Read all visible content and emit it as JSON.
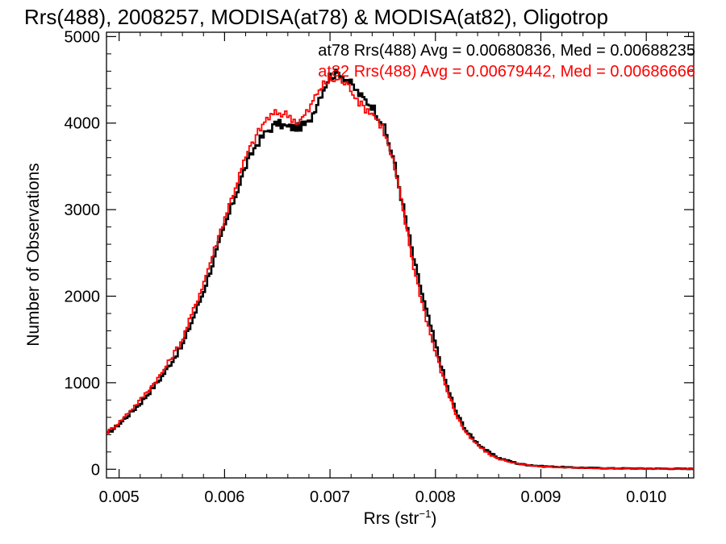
{
  "chart_data": {
    "type": "line",
    "title": "Rrs(488), 2008257, MODISA(at78) & MODISA(at82), Oligotrop",
    "xlabel": "Rrs (str",
    "xlabel_sup": "−1",
    "xlabel_tail": ")",
    "ylabel": "Number of Observations",
    "xlim": [
      0.00488,
      0.01045
    ],
    "ylim": [
      -100,
      5050
    ],
    "x_ticks": [
      0.005,
      0.006,
      0.007,
      0.008,
      0.009,
      0.01
    ],
    "x_tick_labels": [
      "0.005",
      "0.006",
      "0.007",
      "0.008",
      "0.009",
      "0.010"
    ],
    "y_ticks": [
      0,
      1000,
      2000,
      3000,
      4000,
      5000
    ],
    "y_tick_labels": [
      "0",
      "1000",
      "2000",
      "3000",
      "4000",
      "5000"
    ],
    "grid": false,
    "series": [
      {
        "name": "at78",
        "stat_text": "at78 Rrs(488) Avg = 0.00680836, Med = 0.00688235",
        "color": "#000000",
        "x": [
          0.00488,
          0.005,
          0.0052,
          0.0054,
          0.0056,
          0.0058,
          0.006,
          0.0062,
          0.0063,
          0.0064,
          0.0065,
          0.0066,
          0.0067,
          0.0068,
          0.0069,
          0.007,
          0.0071,
          0.0072,
          0.0073,
          0.0074,
          0.0075,
          0.0076,
          0.0077,
          0.0078,
          0.0079,
          0.008,
          0.0081,
          0.0082,
          0.0083,
          0.0084,
          0.0085,
          0.0086,
          0.0088,
          0.009,
          0.0093,
          0.0097,
          0.0104
        ],
        "y": [
          400,
          520,
          760,
          1060,
          1430,
          2050,
          2800,
          3500,
          3750,
          3900,
          4000,
          3950,
          3950,
          4000,
          4300,
          4550,
          4580,
          4450,
          4300,
          4200,
          4000,
          3600,
          3000,
          2400,
          1900,
          1450,
          1000,
          650,
          430,
          300,
          200,
          130,
          60,
          35,
          20,
          10,
          5
        ]
      },
      {
        "name": "at82",
        "stat_text": "at82 Rrs(488) Avg = 0.00679442, Med = 0.00686666",
        "color": "#ff0000",
        "x": [
          0.00488,
          0.005,
          0.0052,
          0.0054,
          0.0056,
          0.0058,
          0.006,
          0.0062,
          0.0063,
          0.0064,
          0.0065,
          0.0066,
          0.0067,
          0.0068,
          0.0069,
          0.007,
          0.0071,
          0.0072,
          0.0073,
          0.0074,
          0.0075,
          0.0076,
          0.0077,
          0.0078,
          0.0079,
          0.008,
          0.0081,
          0.0082,
          0.0083,
          0.0084,
          0.0085,
          0.0086,
          0.0088,
          0.009,
          0.0093,
          0.0097,
          0.0104
        ],
        "y": [
          420,
          540,
          800,
          1100,
          1500,
          2150,
          2900,
          3600,
          3850,
          4050,
          4120,
          4100,
          4000,
          4150,
          4400,
          4500,
          4500,
          4400,
          4200,
          4120,
          3950,
          3550,
          2950,
          2300,
          1800,
          1350,
          950,
          620,
          400,
          280,
          180,
          120,
          55,
          30,
          18,
          8,
          4
        ]
      }
    ]
  }
}
